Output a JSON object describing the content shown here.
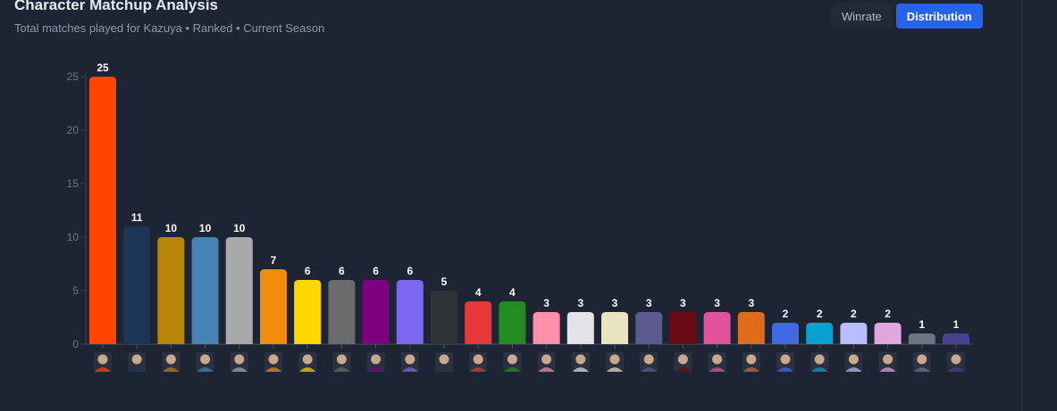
{
  "header": {
    "title": "Character Matchup Analysis",
    "subtitle": "Total matches played for Kazuya • Ranked • Current Season"
  },
  "toggle": {
    "winrate_label": "Winrate",
    "distribution_label": "Distribution",
    "active": "distribution"
  },
  "chart_data": {
    "type": "bar",
    "title": "",
    "xlabel": "",
    "ylabel": "",
    "ylim": [
      0,
      25
    ],
    "yticks": [
      0,
      5,
      10,
      15,
      20,
      25
    ],
    "categories": [
      "",
      "",
      "",
      "",
      "",
      "",
      "",
      "",
      "",
      "",
      "",
      "",
      "",
      "",
      "",
      "",
      "",
      "",
      "",
      "",
      "",
      "",
      "",
      "",
      "",
      ""
    ],
    "values": [
      25,
      11,
      10,
      10,
      10,
      7,
      6,
      6,
      6,
      6,
      5,
      4,
      4,
      3,
      3,
      3,
      3,
      3,
      3,
      3,
      2,
      2,
      2,
      2,
      1,
      1
    ],
    "colors": [
      "#ff4500",
      "#1c3557",
      "#b8860b",
      "#4682b4",
      "#a9a9a9",
      "#f28c0a",
      "#ffd700",
      "#6b6b6b",
      "#7f007f",
      "#7b68ee",
      "#2f3338",
      "#e63838",
      "#228b22",
      "#ff8fab",
      "#e2e4e8",
      "#eae4c0",
      "#5d5a8f",
      "#6a0a12",
      "#e0529c",
      "#e06b1a",
      "#4169e1",
      "#0aa0d0",
      "#b9bdff",
      "#e0a6de",
      "#6c7584",
      "#48418f"
    ],
    "data_labels": true,
    "grid": false,
    "legend": "none",
    "tick_icons": "character-portrait-icon"
  }
}
